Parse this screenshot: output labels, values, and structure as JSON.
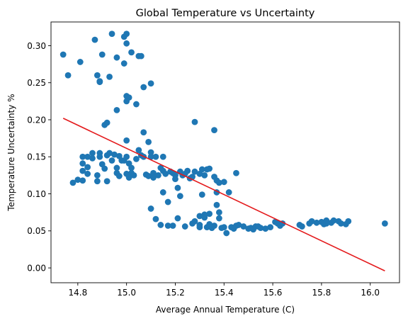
{
  "chart_data": {
    "type": "scatter",
    "title": "Global Temperature vs Uncertainty",
    "xlabel": "Average Annual Temperature (C)",
    "ylabel": "Temperature Uncertainty %",
    "xlim": [
      14.69,
      16.12
    ],
    "ylim": [
      -0.02,
      0.332
    ],
    "grid": false,
    "x_ticks": [
      {
        "value": 14.8,
        "label": "14.8"
      },
      {
        "value": 15.0,
        "label": "15.0"
      },
      {
        "value": 15.2,
        "label": "15.2"
      },
      {
        "value": 15.4,
        "label": "15.4"
      },
      {
        "value": 15.6,
        "label": "15.6"
      },
      {
        "value": 15.8,
        "label": "15.8"
      },
      {
        "value": 16.0,
        "label": "16.0"
      }
    ],
    "y_ticks": [
      {
        "value": 0.0,
        "label": "0.00"
      },
      {
        "value": 0.05,
        "label": "0.05"
      },
      {
        "value": 0.1,
        "label": "0.10"
      },
      {
        "value": 0.15,
        "label": "0.15"
      },
      {
        "value": 0.2,
        "label": "0.20"
      },
      {
        "value": 0.25,
        "label": "0.25"
      },
      {
        "value": 0.3,
        "label": "0.30"
      }
    ],
    "scatter_color": "#1f77b4",
    "trend_color": "#e41a1c",
    "trend_line": {
      "x": [
        14.74,
        16.06
      ],
      "y": [
        0.202,
        -0.004
      ]
    },
    "points": [
      [
        14.74,
        0.288
      ],
      [
        14.76,
        0.26
      ],
      [
        14.81,
        0.278
      ],
      [
        14.87,
        0.308
      ],
      [
        14.88,
        0.26
      ],
      [
        14.89,
        0.251
      ],
      [
        14.89,
        0.252
      ],
      [
        14.9,
        0.288
      ],
      [
        14.93,
        0.258
      ],
      [
        14.94,
        0.316
      ],
      [
        14.96,
        0.284
      ],
      [
        14.99,
        0.312
      ],
      [
        15.0,
        0.316
      ],
      [
        15.0,
        0.303
      ],
      [
        14.99,
        0.276
      ],
      [
        15.02,
        0.291
      ],
      [
        15.05,
        0.286
      ],
      [
        15.06,
        0.286
      ],
      [
        15.07,
        0.244
      ],
      [
        15.1,
        0.249
      ],
      [
        14.96,
        0.213
      ],
      [
        15.0,
        0.232
      ],
      [
        15.01,
        0.23
      ],
      [
        15.0,
        0.225
      ],
      [
        15.04,
        0.221
      ],
      [
        14.91,
        0.193
      ],
      [
        14.92,
        0.196
      ],
      [
        15.07,
        0.183
      ],
      [
        15.0,
        0.172
      ],
      [
        15.09,
        0.17
      ],
      [
        15.28,
        0.197
      ],
      [
        15.36,
        0.186
      ],
      [
        14.78,
        0.115
      ],
      [
        14.8,
        0.119
      ],
      [
        14.82,
        0.131
      ],
      [
        14.82,
        0.141
      ],
      [
        14.82,
        0.15
      ],
      [
        14.82,
        0.118
      ],
      [
        14.84,
        0.15
      ],
      [
        14.84,
        0.136
      ],
      [
        14.84,
        0.127
      ],
      [
        14.86,
        0.155
      ],
      [
        14.86,
        0.148
      ],
      [
        14.88,
        0.125
      ],
      [
        14.88,
        0.117
      ],
      [
        14.89,
        0.155
      ],
      [
        14.89,
        0.15
      ],
      [
        14.9,
        0.14
      ],
      [
        14.91,
        0.134
      ],
      [
        14.92,
        0.117
      ],
      [
        14.92,
        0.152
      ],
      [
        14.93,
        0.155
      ],
      [
        14.94,
        0.145
      ],
      [
        14.95,
        0.153
      ],
      [
        14.96,
        0.135
      ],
      [
        14.96,
        0.128
      ],
      [
        14.97,
        0.151
      ],
      [
        14.97,
        0.124
      ],
      [
        14.98,
        0.145
      ],
      [
        14.99,
        0.145
      ],
      [
        15.0,
        0.15
      ],
      [
        15.0,
        0.127
      ],
      [
        15.01,
        0.122
      ],
      [
        15.01,
        0.141
      ],
      [
        15.02,
        0.135
      ],
      [
        15.02,
        0.128
      ],
      [
        15.03,
        0.125
      ],
      [
        15.04,
        0.147
      ],
      [
        15.05,
        0.159
      ],
      [
        15.06,
        0.152
      ],
      [
        15.07,
        0.15
      ],
      [
        15.08,
        0.126
      ],
      [
        15.09,
        0.124
      ],
      [
        15.1,
        0.156
      ],
      [
        15.1,
        0.15
      ],
      [
        15.11,
        0.128
      ],
      [
        15.11,
        0.122
      ],
      [
        15.12,
        0.15
      ],
      [
        15.13,
        0.125
      ],
      [
        15.14,
        0.135
      ],
      [
        15.15,
        0.131
      ],
      [
        15.15,
        0.15
      ],
      [
        15.16,
        0.127
      ],
      [
        15.18,
        0.13
      ],
      [
        15.19,
        0.128
      ],
      [
        15.2,
        0.125
      ],
      [
        15.2,
        0.12
      ],
      [
        15.22,
        0.13
      ],
      [
        15.23,
        0.125
      ],
      [
        15.24,
        0.127
      ],
      [
        15.25,
        0.131
      ],
      [
        15.26,
        0.121
      ],
      [
        15.27,
        0.123
      ],
      [
        15.28,
        0.13
      ],
      [
        15.3,
        0.127
      ],
      [
        15.31,
        0.133
      ],
      [
        15.32,
        0.125
      ],
      [
        15.33,
        0.133
      ],
      [
        15.34,
        0.134
      ],
      [
        15.36,
        0.123
      ],
      [
        15.37,
        0.118
      ],
      [
        15.38,
        0.115
      ],
      [
        15.4,
        0.116
      ],
      [
        15.45,
        0.128
      ],
      [
        15.1,
        0.08
      ],
      [
        15.12,
        0.066
      ],
      [
        15.14,
        0.058
      ],
      [
        15.15,
        0.102
      ],
      [
        15.17,
        0.089
      ],
      [
        15.17,
        0.057
      ],
      [
        15.19,
        0.057
      ],
      [
        15.21,
        0.067
      ],
      [
        15.21,
        0.108
      ],
      [
        15.22,
        0.097
      ],
      [
        15.24,
        0.056
      ],
      [
        15.27,
        0.06
      ],
      [
        15.28,
        0.063
      ],
      [
        15.3,
        0.07
      ],
      [
        15.3,
        0.058
      ],
      [
        15.3,
        0.055
      ],
      [
        15.31,
        0.099
      ],
      [
        15.32,
        0.072
      ],
      [
        15.32,
        0.068
      ],
      [
        15.33,
        0.055
      ],
      [
        15.34,
        0.073
      ],
      [
        15.34,
        0.059
      ],
      [
        15.34,
        0.056
      ],
      [
        15.35,
        0.054
      ],
      [
        15.36,
        0.057
      ],
      [
        15.37,
        0.102
      ],
      [
        15.37,
        0.085
      ],
      [
        15.38,
        0.075
      ],
      [
        15.38,
        0.067
      ],
      [
        15.39,
        0.054
      ],
      [
        15.4,
        0.055
      ],
      [
        15.41,
        0.047
      ],
      [
        15.42,
        0.102
      ],
      [
        15.43,
        0.055
      ],
      [
        15.44,
        0.053
      ],
      [
        15.45,
        0.057
      ],
      [
        15.46,
        0.058
      ],
      [
        15.48,
        0.056
      ],
      [
        15.5,
        0.053
      ],
      [
        15.51,
        0.054
      ],
      [
        15.52,
        0.052
      ],
      [
        15.53,
        0.056
      ],
      [
        15.54,
        0.056
      ],
      [
        15.55,
        0.054
      ],
      [
        15.57,
        0.053
      ],
      [
        15.59,
        0.055
      ],
      [
        15.61,
        0.062
      ],
      [
        15.62,
        0.06
      ],
      [
        15.63,
        0.057
      ],
      [
        15.64,
        0.06
      ],
      [
        15.71,
        0.058
      ],
      [
        15.72,
        0.056
      ],
      [
        15.75,
        0.06
      ],
      [
        15.76,
        0.063
      ],
      [
        15.78,
        0.061
      ],
      [
        15.8,
        0.062
      ],
      [
        15.81,
        0.059
      ],
      [
        15.82,
        0.06
      ],
      [
        15.82,
        0.064
      ],
      [
        15.84,
        0.061
      ],
      [
        15.85,
        0.064
      ],
      [
        15.87,
        0.063
      ],
      [
        15.88,
        0.06
      ],
      [
        15.9,
        0.059
      ],
      [
        15.91,
        0.063
      ],
      [
        16.06,
        0.06
      ]
    ]
  }
}
